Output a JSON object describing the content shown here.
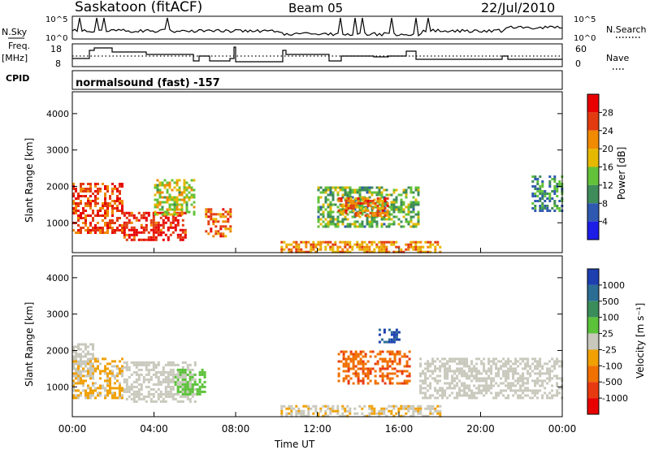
{
  "header": {
    "station": "Saskatoon (fitACF)",
    "beam": "Beam 05",
    "date": "22/Jul/2010"
  },
  "strip_panels": {
    "nsky_label": "N.Sky",
    "nsky_ticks": [
      "10^5",
      "10^0"
    ],
    "nsearch_label": "N.Search",
    "nsearch_ticks": [
      "10^5",
      "10^0"
    ],
    "freq_label_1": "Freq.",
    "freq_label_2": "[MHz]",
    "freq_ticks": [
      "18",
      "8"
    ],
    "nave_label": "Nave",
    "nave_ticks": [
      "60",
      "0"
    ],
    "cpid_label": "CPID",
    "cpid_value": "normalsound (fast) -157"
  },
  "axes": {
    "xlabel": "Time UT",
    "x_ticks": [
      "00:00",
      "04:00",
      "08:00",
      "12:00",
      "16:00",
      "20:00",
      "00:00"
    ],
    "ylabel": "Slant Range [km]",
    "y_ticks": [
      "1000",
      "2000",
      "3000",
      "4000"
    ]
  },
  "power_scale": {
    "label": "Power [dB]",
    "ticks": [
      "4",
      "8",
      "12",
      "16",
      "20",
      "24",
      "28"
    ],
    "colors": [
      "#1d1de8",
      "#2f59b0",
      "#3e8c5a",
      "#63c23a",
      "#e6b800",
      "#f08a00",
      "#e23b10",
      "#e80000"
    ]
  },
  "velocity_scale": {
    "label": "Velocity [m s⁻¹]",
    "ticks": [
      "1000",
      "500",
      "100",
      "25",
      "-25",
      "-100",
      "-500",
      "-1000"
    ],
    "colors": [
      "#1d3fb0",
      "#2b6d93",
      "#3a8d5a",
      "#5cc23a",
      "#c8c8bc",
      "#f0a000",
      "#f07000",
      "#e83a10",
      "#e80000"
    ]
  },
  "chart_data": [
    {
      "type": "heatmap",
      "title": "Power",
      "xlabel": "Time UT",
      "ylabel": "Slant Range [km]",
      "x_range_hours": [
        0,
        24
      ],
      "y_range_km": [
        180,
        4600
      ],
      "color_range_db": [
        0,
        30
      ],
      "data_gap_hours": [
        8.0,
        10.2
      ],
      "echo_regions": [
        {
          "t0": 0.0,
          "t1": 2.5,
          "r0": 700,
          "r1": 2100,
          "value": 24
        },
        {
          "t0": 2.5,
          "t1": 5.5,
          "r0": 500,
          "r1": 1300,
          "value": 27
        },
        {
          "t0": 4.0,
          "t1": 6.0,
          "r0": 1200,
          "r1": 2200,
          "value": 16
        },
        {
          "t0": 6.5,
          "t1": 7.8,
          "r0": 600,
          "r1": 1400,
          "value": 22
        },
        {
          "t0": 10.2,
          "t1": 18.0,
          "r0": 180,
          "r1": 500,
          "value": 20
        },
        {
          "t0": 12.0,
          "t1": 17.0,
          "r0": 900,
          "r1": 2000,
          "value": 12
        },
        {
          "t0": 13.0,
          "t1": 15.5,
          "r0": 1200,
          "r1": 1700,
          "value": 22
        },
        {
          "t0": 22.5,
          "t1": 24.0,
          "r0": 1300,
          "r1": 2300,
          "value": 10
        }
      ]
    },
    {
      "type": "heatmap",
      "title": "Velocity",
      "xlabel": "Time UT",
      "ylabel": "Slant Range [km]",
      "x_range_hours": [
        0,
        24
      ],
      "y_range_km": [
        180,
        4600
      ],
      "color_range_ms": [
        -1000,
        1000
      ],
      "data_gap_hours": [
        8.0,
        10.2
      ],
      "echo_regions": [
        {
          "t0": 0.0,
          "t1": 2.5,
          "r0": 700,
          "r1": 1800,
          "value": -150
        },
        {
          "t0": 0.0,
          "t1": 1.0,
          "r0": 1300,
          "r1": 2200,
          "value": 0
        },
        {
          "t0": 2.5,
          "t1": 6.0,
          "r0": 600,
          "r1": 1700,
          "value": 0
        },
        {
          "t0": 5.0,
          "t1": 6.5,
          "r0": 800,
          "r1": 1500,
          "value": 200
        },
        {
          "t0": 10.2,
          "t1": 18.0,
          "r0": 180,
          "r1": 500,
          "value": -80
        },
        {
          "t0": 13.0,
          "t1": 16.5,
          "r0": 1100,
          "r1": 2000,
          "value": -500
        },
        {
          "t0": 15.0,
          "t1": 16.0,
          "r0": 2200,
          "r1": 2600,
          "value": 800
        },
        {
          "t0": 17.0,
          "t1": 24.0,
          "r0": 700,
          "r1": 1800,
          "value": 0
        }
      ]
    }
  ]
}
